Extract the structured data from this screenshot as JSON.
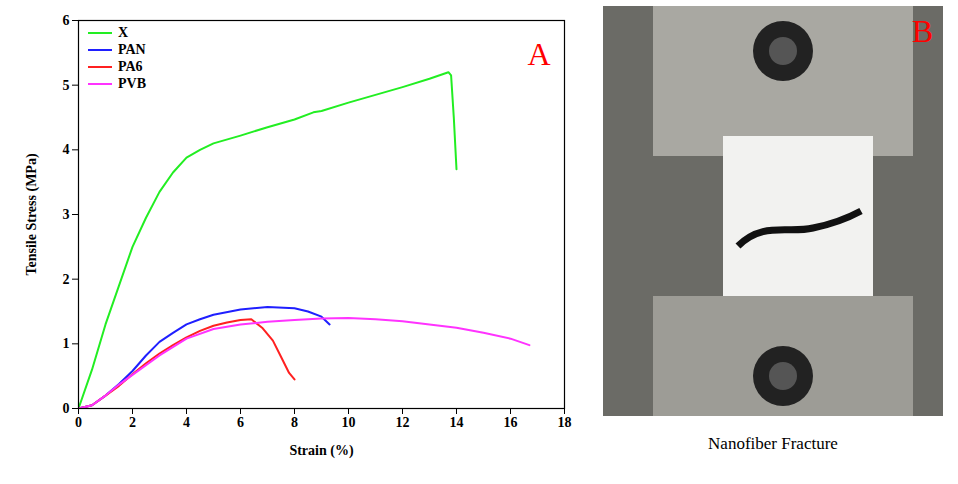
{
  "chart_data": {
    "type": "line",
    "x_label": "Strain (%)",
    "y_label": "Tensile Stress (MPa)",
    "xlim": [
      0,
      18
    ],
    "xticks": [
      0,
      2,
      4,
      6,
      8,
      10,
      12,
      14,
      16,
      18
    ],
    "ylim": [
      0,
      6
    ],
    "yticks": [
      0,
      1,
      2,
      3,
      4,
      5,
      6
    ],
    "grid": false,
    "legend": "top-left",
    "annotations": [
      "A"
    ],
    "series": [
      {
        "name": "X",
        "color": "#22ee22",
        "x": [
          0,
          0.5,
          1,
          1.5,
          2,
          2.5,
          3,
          3.5,
          4,
          4.5,
          5,
          6,
          7,
          8,
          8.7,
          9,
          10,
          11,
          12,
          13,
          13.7,
          13.8,
          13.9,
          14
        ],
        "values": [
          0,
          0.6,
          1.3,
          1.9,
          2.5,
          2.95,
          3.35,
          3.65,
          3.88,
          4.0,
          4.1,
          4.22,
          4.35,
          4.47,
          4.58,
          4.6,
          4.73,
          4.85,
          4.97,
          5.1,
          5.2,
          5.15,
          4.5,
          3.7
        ]
      },
      {
        "name": "PAN",
        "color": "#1f1fff",
        "x": [
          0,
          0.5,
          1,
          1.5,
          2,
          2.5,
          3,
          3.5,
          4,
          4.5,
          5,
          6,
          7,
          8,
          8.5,
          9,
          9.3
        ],
        "values": [
          0,
          0.05,
          0.2,
          0.38,
          0.58,
          0.82,
          1.03,
          1.17,
          1.3,
          1.38,
          1.45,
          1.53,
          1.57,
          1.55,
          1.5,
          1.42,
          1.3
        ]
      },
      {
        "name": "PA6",
        "color": "#ff2020",
        "x": [
          0,
          0.5,
          1,
          1.5,
          2,
          2.5,
          3,
          3.5,
          4,
          4.5,
          5,
          5.5,
          6,
          6.4,
          6.8,
          7.2,
          7.5,
          7.8,
          8
        ],
        "values": [
          0,
          0.05,
          0.2,
          0.35,
          0.53,
          0.7,
          0.85,
          0.98,
          1.1,
          1.2,
          1.28,
          1.33,
          1.37,
          1.38,
          1.25,
          1.05,
          0.8,
          0.55,
          0.45
        ]
      },
      {
        "name": "PVB",
        "color": "#ff33ff",
        "x": [
          0,
          0.5,
          1,
          1.5,
          2,
          3,
          4,
          5,
          6,
          7,
          8,
          9,
          10,
          11,
          12,
          13,
          14,
          15,
          16,
          16.7
        ],
        "values": [
          0,
          0.05,
          0.2,
          0.37,
          0.52,
          0.82,
          1.08,
          1.23,
          1.3,
          1.34,
          1.37,
          1.39,
          1.4,
          1.38,
          1.35,
          1.3,
          1.25,
          1.17,
          1.08,
          0.98
        ]
      }
    ]
  },
  "photo": {
    "label": "B",
    "caption": "Nanofiber Fracture"
  }
}
